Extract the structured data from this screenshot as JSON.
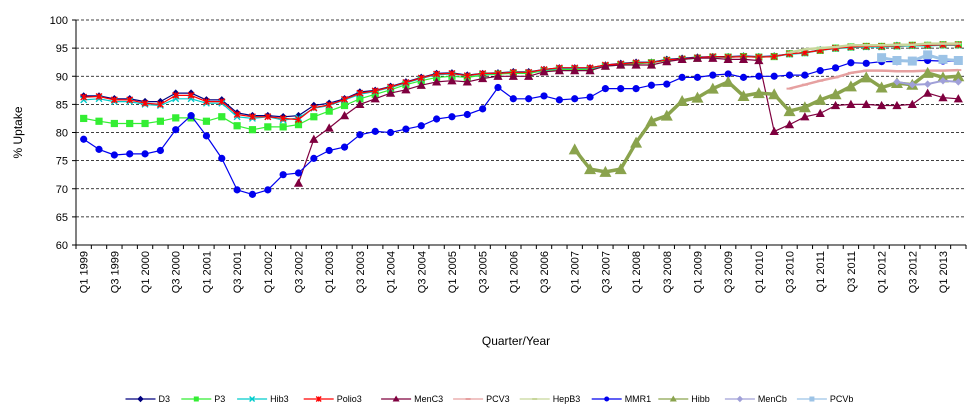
{
  "chart_data": {
    "type": "line",
    "title": "",
    "xlabel": "Quarter/Year",
    "ylabel": "% Uptake",
    "ylim": [
      60,
      100
    ],
    "yticks": [
      60,
      65,
      70,
      75,
      80,
      85,
      90,
      95,
      100
    ],
    "grid": "horizontal dashed",
    "legend_position": "bottom",
    "categories": [
      "Q1 1999",
      "Q2 1999",
      "Q3 1999",
      "Q4 1999",
      "Q1 2000",
      "Q2 2000",
      "Q3 2000",
      "Q4 2000",
      "Q1 2001",
      "Q2 2001",
      "Q3 2001",
      "Q4 2001",
      "Q1 2002",
      "Q2 2002",
      "Q3 2002",
      "Q4 2002",
      "Q1 2003",
      "Q2 2003",
      "Q3 2003",
      "Q4 2003",
      "Q1 2004",
      "Q2 2004",
      "Q3 2004",
      "Q4 2004",
      "Q1 2005",
      "Q2 2005",
      "Q3 2005",
      "Q4 2005",
      "Q1 2006",
      "Q2 2006",
      "Q3 2006",
      "Q4 2006",
      "Q1 2007",
      "Q2 2007",
      "Q3 2007",
      "Q4 2007",
      "Q1 2008",
      "Q2 2008",
      "Q3 2008",
      "Q4 2008",
      "Q1 2009",
      "Q2 2009",
      "Q3 2009",
      "Q4 2009",
      "Q1 2010",
      "Q2 2010",
      "Q3 2010",
      "Q4 2010",
      "Q1 2011",
      "Q2 2011",
      "Q3 2011",
      "Q4 2011",
      "Q1 2012",
      "Q2 2012",
      "Q3 2012",
      "Q4 2012",
      "Q1 2013",
      "Q2 2013"
    ],
    "tick_labels": [
      "Q1 1999",
      "Q3 1999",
      "Q1 2000",
      "Q3 2000",
      "Q1 2001",
      "Q3 2001",
      "Q1 2002",
      "Q3 2002",
      "Q1 2003",
      "Q3 2003",
      "Q1 2004",
      "Q3 2004",
      "Q1 2005",
      "Q3 2005",
      "Q1 2006",
      "Q3 2006",
      "Q1 2007",
      "Q3 2007",
      "Q1 2008",
      "Q3 2008",
      "Q1 2009",
      "Q3 2009",
      "Q1 2010",
      "Q3 2010",
      "Q1 2011",
      "Q3 2011",
      "Q1 2012",
      "Q3 2012",
      "Q1 2013"
    ],
    "series": [
      {
        "name": "D3",
        "color": "#00007f",
        "marker": "diamond",
        "values": [
          86.5,
          86.5,
          86,
          86,
          85.5,
          85.5,
          87,
          87,
          85.8,
          85.8,
          83.5,
          83,
          83,
          82.8,
          83,
          84.8,
          85.2,
          86,
          87.2,
          87.5,
          88.2,
          89,
          89.8,
          90.5,
          90.6,
          90.2,
          90.5,
          90.6,
          90.8,
          90.8,
          91.2,
          91.5,
          91.5,
          91.5,
          92,
          92.3,
          92.5,
          92.5,
          93,
          93.2,
          93.4,
          93.5,
          93.5,
          93.6,
          93.5,
          93.6,
          94,
          94.2,
          94.7,
          95,
          95.2,
          95.3,
          95.3,
          95.5,
          95.5,
          95.5,
          95.6,
          95.6
        ]
      },
      {
        "name": "P3",
        "color": "#33ee33",
        "marker": "square",
        "values": [
          82.5,
          82,
          81.6,
          81.6,
          81.6,
          82,
          82.6,
          82.6,
          82,
          82.8,
          81.2,
          80.5,
          81,
          81,
          81.4,
          82.8,
          83.8,
          84.8,
          86,
          86.8,
          87.6,
          88.5,
          89.2,
          89.8,
          90,
          89.8,
          90.2,
          90.4,
          90.5,
          90.5,
          91,
          91.2,
          91.2,
          91.2,
          91.8,
          92,
          92.2,
          92.4,
          92.8,
          93,
          93.2,
          93.4,
          93.4,
          93.5,
          93.4,
          93.5,
          94,
          94.2,
          94.6,
          95,
          95.2,
          95.3,
          95.3,
          95.4,
          95.5,
          95.5,
          95.6,
          95.6
        ]
      },
      {
        "name": "Hib3",
        "color": "#00cccc",
        "marker": "x",
        "values": [
          85.8,
          86,
          85.5,
          85.5,
          85,
          84.8,
          86,
          86,
          85.2,
          85.2,
          82.8,
          82.5,
          82.8,
          82.2,
          82.6,
          84.3,
          84.8,
          85.8,
          86.8,
          87.3,
          88,
          88.8,
          89.6,
          90.3,
          90.4,
          90.1,
          90.4,
          90.5,
          90.7,
          90.7,
          91.1,
          91.4,
          91.4,
          91.4,
          91.9,
          92.2,
          92.4,
          92.4,
          92.9,
          93.1,
          93.3,
          93.4,
          93.4,
          93.5,
          93.4,
          93.5,
          93.9,
          94.1,
          94.6,
          94.9,
          95.1,
          95.2,
          95.2,
          95.3,
          95.4,
          95.4,
          95.5,
          95.5
        ]
      },
      {
        "name": "Polio3",
        "color": "#ff0000",
        "marker": "asterisk",
        "values": [
          86.3,
          86.4,
          85.8,
          85.8,
          85.2,
          85,
          86.6,
          86.6,
          85.5,
          85.5,
          83.2,
          82.8,
          82.8,
          82.5,
          82.3,
          84.4,
          84.9,
          85.9,
          87,
          87.4,
          88.1,
          88.9,
          89.7,
          90.4,
          90.5,
          90.1,
          90.5,
          90.5,
          90.7,
          90.7,
          91.2,
          91.5,
          91.5,
          91.5,
          92,
          92.2,
          92.4,
          92.4,
          92.9,
          93.1,
          93.3,
          93.5,
          93.4,
          93.5,
          93.4,
          93.5,
          94,
          94.2,
          94.6,
          95,
          95.2,
          95.3,
          95.3,
          95.4,
          95.5,
          95.5,
          95.6,
          95.6
        ]
      },
      {
        "name": "MenC3",
        "color": "#7f003f",
        "marker": "triangle",
        "values": [
          null,
          null,
          null,
          null,
          null,
          null,
          null,
          null,
          null,
          null,
          null,
          null,
          null,
          null,
          71,
          78.8,
          80.8,
          83,
          85,
          86,
          87,
          87.6,
          88.4,
          89,
          89.2,
          89,
          89.6,
          90,
          90,
          90,
          90.8,
          91,
          91,
          91,
          91.8,
          92,
          92,
          92,
          92.6,
          93,
          93.2,
          93.2,
          93,
          93,
          92.8,
          80.2,
          81.4,
          82.8,
          83.4,
          84.8,
          85,
          85,
          84.8,
          84.8,
          85,
          87,
          86.2,
          86
        ]
      },
      {
        "name": "PCV3",
        "color": "#e6a0a0",
        "marker": "dash",
        "values": [
          null,
          null,
          null,
          null,
          null,
          null,
          null,
          null,
          null,
          null,
          null,
          null,
          null,
          null,
          null,
          null,
          null,
          null,
          null,
          null,
          null,
          null,
          null,
          null,
          null,
          null,
          null,
          null,
          null,
          null,
          null,
          null,
          null,
          null,
          null,
          null,
          null,
          null,
          null,
          null,
          null,
          null,
          null,
          null,
          null,
          null,
          87.8,
          88.5,
          89.2,
          89.8,
          90.6,
          91,
          91,
          90.9,
          90.9,
          91,
          91,
          91.1
        ]
      },
      {
        "name": "HepB3",
        "color": "#c7d69b",
        "marker": "dash",
        "values": [
          null,
          null,
          null,
          null,
          null,
          null,
          null,
          null,
          null,
          null,
          null,
          null,
          null,
          null,
          null,
          null,
          null,
          null,
          null,
          null,
          null,
          null,
          null,
          null,
          null,
          null,
          null,
          null,
          null,
          null,
          null,
          null,
          null,
          null,
          null,
          null,
          null,
          null,
          null,
          null,
          null,
          null,
          null,
          null,
          null,
          null,
          94.2,
          94.8,
          95,
          95.2,
          95.5,
          95.5,
          95.5,
          95.6,
          95.6,
          95.8,
          95.8,
          95.8
        ]
      },
      {
        "name": "MMR1",
        "color": "#0000ee",
        "marker": "circle",
        "values": [
          78.8,
          77,
          76,
          76.2,
          76.2,
          76.8,
          80.5,
          83,
          79.4,
          75.4,
          69.8,
          69,
          69.8,
          72.5,
          72.8,
          75.4,
          76.8,
          77.4,
          79.6,
          80.2,
          80,
          80.6,
          81.2,
          82.4,
          82.8,
          83.2,
          84.2,
          88,
          86,
          86,
          86.5,
          85.8,
          86,
          86.3,
          87.8,
          87.8,
          87.8,
          88.4,
          88.6,
          89.8,
          89.8,
          90.2,
          90.4,
          89.8,
          90,
          90,
          90.2,
          90.2,
          91,
          91.5,
          92.4,
          92.3,
          92.6,
          92.6,
          92.8,
          92.8,
          92.7,
          92.7
        ]
      },
      {
        "name": "Hibb",
        "color": "#8aa34d",
        "marker": "triangle",
        "values": [
          null,
          null,
          null,
          null,
          null,
          null,
          null,
          null,
          null,
          null,
          null,
          null,
          null,
          null,
          null,
          null,
          null,
          null,
          null,
          null,
          null,
          null,
          null,
          null,
          null,
          null,
          null,
          null,
          null,
          null,
          null,
          null,
          77,
          73.5,
          73,
          73.5,
          78.2,
          82,
          83,
          85.6,
          86.2,
          87.8,
          89,
          86.5,
          87,
          86.8,
          83.8,
          84.5,
          85.8,
          86.8,
          88.2,
          89.8,
          88,
          88.8,
          88.5,
          90.6,
          89.8,
          90
        ]
      },
      {
        "name": "MenCb",
        "color": "#a0a0d8",
        "marker": "diamond",
        "values": [
          null,
          null,
          null,
          null,
          null,
          null,
          null,
          null,
          null,
          null,
          null,
          null,
          null,
          null,
          null,
          null,
          null,
          null,
          null,
          null,
          null,
          null,
          null,
          null,
          null,
          null,
          null,
          null,
          null,
          null,
          null,
          null,
          null,
          null,
          null,
          null,
          null,
          null,
          null,
          null,
          null,
          null,
          null,
          null,
          null,
          null,
          null,
          null,
          null,
          null,
          null,
          null,
          null,
          89,
          88.5,
          88.6,
          89.2,
          89
        ]
      },
      {
        "name": "PCVb",
        "color": "#9cc3e6",
        "marker": "square",
        "values": [
          null,
          null,
          null,
          null,
          null,
          null,
          null,
          null,
          null,
          null,
          null,
          null,
          null,
          null,
          null,
          null,
          null,
          null,
          null,
          null,
          null,
          null,
          null,
          null,
          null,
          null,
          null,
          null,
          null,
          null,
          null,
          null,
          null,
          null,
          null,
          null,
          null,
          null,
          null,
          null,
          null,
          null,
          null,
          null,
          null,
          null,
          null,
          null,
          null,
          null,
          null,
          null,
          93.3,
          92.8,
          92.7,
          93.8,
          93,
          92.8
        ]
      }
    ]
  }
}
